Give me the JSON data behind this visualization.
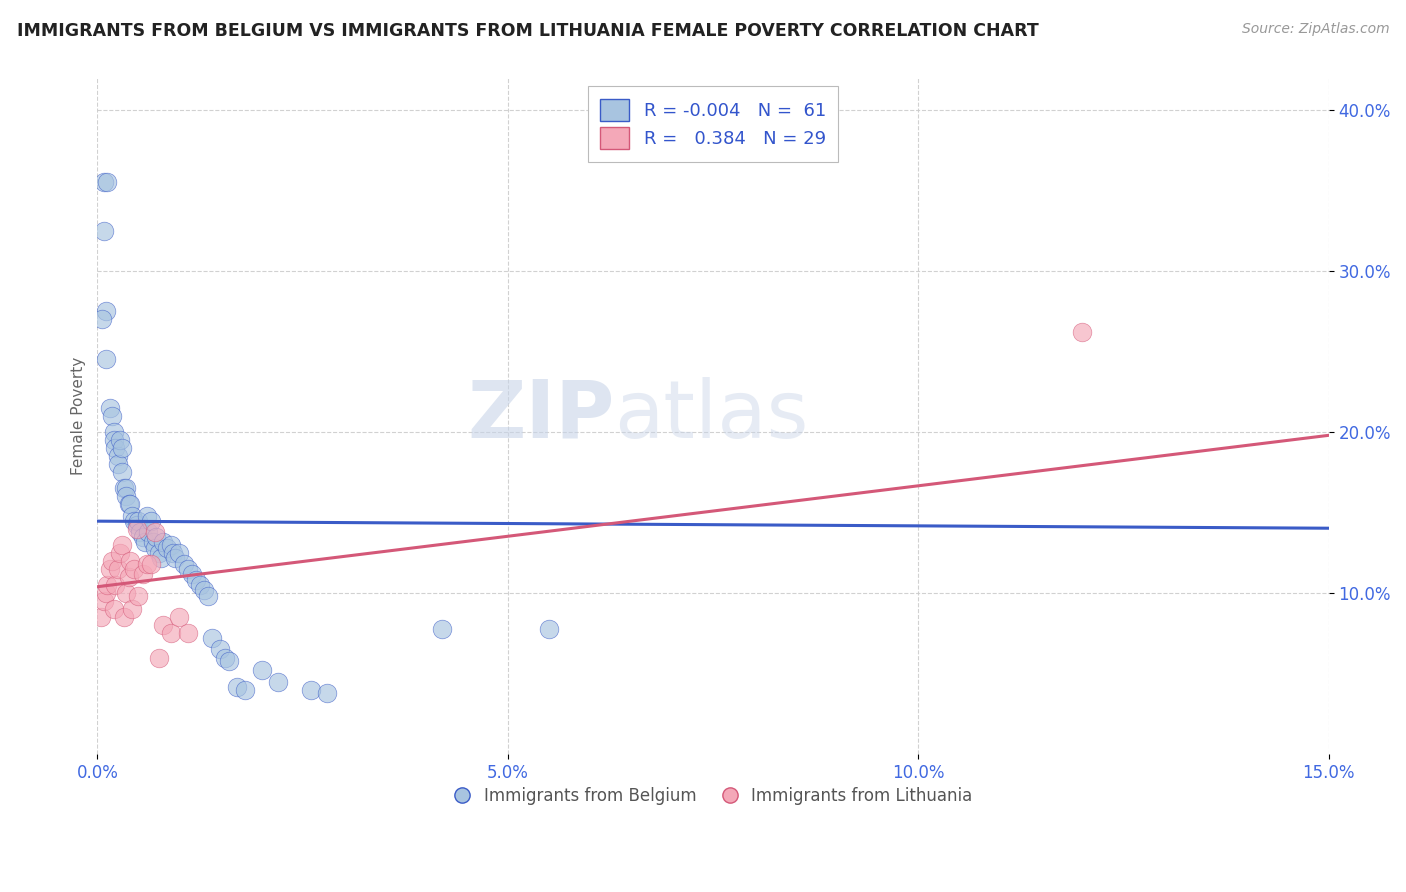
{
  "title": "IMMIGRANTS FROM BELGIUM VS IMMIGRANTS FROM LITHUANIA FEMALE POVERTY CORRELATION CHART",
  "source": "Source: ZipAtlas.com",
  "ylabel_label": "Female Poverty",
  "xlim": [
    0.0,
    0.15
  ],
  "ylim": [
    0.0,
    0.42
  ],
  "x_ticks": [
    0.0,
    0.05,
    0.1,
    0.15
  ],
  "x_tick_labels": [
    "0.0%",
    "5.0%",
    "10.0%",
    "15.0%"
  ],
  "y_ticks": [
    0.1,
    0.2,
    0.3,
    0.4
  ],
  "y_tick_labels": [
    "10.0%",
    "20.0%",
    "30.0%",
    "40.0%"
  ],
  "r1": -0.004,
  "n1": 61,
  "r2": 0.384,
  "n2": 29,
  "color_belgium": "#a8c4e0",
  "color_lithuania": "#f4a8b8",
  "line_color_belgium": "#3a5bc7",
  "line_color_lithuania": "#d45878",
  "watermark_zip": "ZIP",
  "watermark_atlas": "atlas",
  "belgium_x": [
    0.0008,
    0.0012,
    0.0008,
    0.001,
    0.0006,
    0.001,
    0.0015,
    0.0018,
    0.002,
    0.002,
    0.0022,
    0.0025,
    0.0025,
    0.0028,
    0.003,
    0.003,
    0.0032,
    0.0035,
    0.0035,
    0.0038,
    0.004,
    0.0042,
    0.0045,
    0.0048,
    0.005,
    0.0052,
    0.0055,
    0.0058,
    0.006,
    0.0062,
    0.0065,
    0.0068,
    0.007,
    0.0072,
    0.0075,
    0.0078,
    0.008,
    0.0085,
    0.009,
    0.0092,
    0.0095,
    0.01,
    0.0105,
    0.011,
    0.0115,
    0.012,
    0.0125,
    0.013,
    0.0135,
    0.014,
    0.015,
    0.0155,
    0.016,
    0.017,
    0.018,
    0.02,
    0.022,
    0.026,
    0.028,
    0.042,
    0.055
  ],
  "belgium_y": [
    0.355,
    0.355,
    0.325,
    0.275,
    0.27,
    0.245,
    0.215,
    0.21,
    0.2,
    0.195,
    0.19,
    0.185,
    0.18,
    0.195,
    0.19,
    0.175,
    0.165,
    0.165,
    0.16,
    0.155,
    0.155,
    0.148,
    0.145,
    0.142,
    0.145,
    0.138,
    0.135,
    0.132,
    0.148,
    0.138,
    0.145,
    0.132,
    0.128,
    0.135,
    0.125,
    0.122,
    0.132,
    0.128,
    0.13,
    0.125,
    0.122,
    0.125,
    0.118,
    0.115,
    0.112,
    0.108,
    0.105,
    0.102,
    0.098,
    0.072,
    0.065,
    0.06,
    0.058,
    0.042,
    0.04,
    0.052,
    0.045,
    0.04,
    0.038,
    0.078,
    0.078
  ],
  "lithuania_x": [
    0.0005,
    0.0008,
    0.001,
    0.0012,
    0.0015,
    0.0018,
    0.002,
    0.0022,
    0.0025,
    0.0028,
    0.003,
    0.0032,
    0.0035,
    0.0038,
    0.004,
    0.0042,
    0.0045,
    0.0048,
    0.005,
    0.0055,
    0.006,
    0.0065,
    0.007,
    0.0075,
    0.008,
    0.009,
    0.01,
    0.011,
    0.12
  ],
  "lithuania_y": [
    0.085,
    0.095,
    0.1,
    0.105,
    0.115,
    0.12,
    0.09,
    0.105,
    0.115,
    0.125,
    0.13,
    0.085,
    0.1,
    0.11,
    0.12,
    0.09,
    0.115,
    0.14,
    0.098,
    0.112,
    0.118,
    0.118,
    0.138,
    0.06,
    0.08,
    0.075,
    0.085,
    0.075,
    0.262
  ]
}
